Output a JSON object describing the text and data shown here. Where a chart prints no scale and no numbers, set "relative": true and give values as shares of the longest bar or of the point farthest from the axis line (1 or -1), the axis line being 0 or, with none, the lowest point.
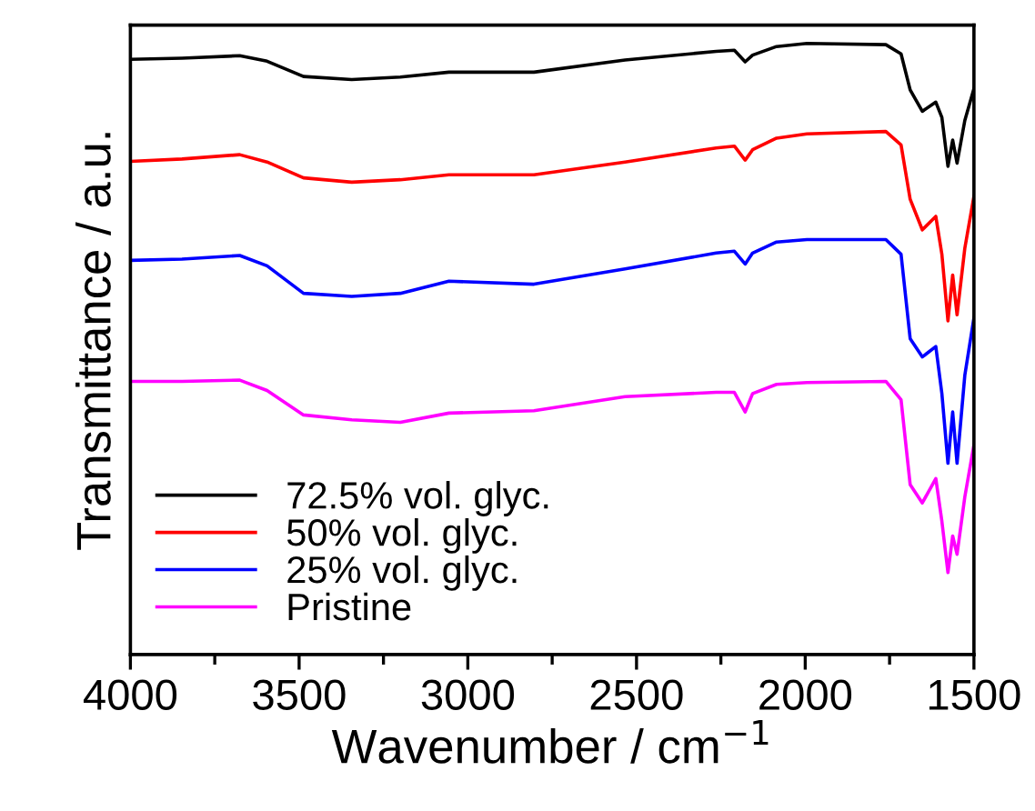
{
  "chart_data": {
    "type": "line",
    "relative": true,
    "xlabel": "Wavenumber / cm$^{−1}$",
    "ylabel": "Transmittance / a.u.",
    "x": [
      4000,
      3847,
      3676,
      3595,
      3487,
      3344,
      3200,
      3056,
      2804,
      2534,
      2264,
      2210,
      2178,
      2156,
      2085,
      1995,
      1761,
      1716,
      1689,
      1653,
      1613,
      1595,
      1577,
      1563,
      1550,
      1527,
      1500
    ],
    "xlim": [
      4000,
      1500
    ],
    "xticks": [
      4000,
      3500,
      3000,
      2500,
      2000,
      1500
    ],
    "legend": "bottom left",
    "grid": false,
    "line_style": "solid",
    "marker": "none",
    "series": [
      {
        "name": "72.5% vol. glyc.",
        "color": "#000000",
        "values": [
          0.974,
          0.976,
          0.98,
          0.971,
          0.946,
          0.941,
          0.945,
          0.953,
          0.953,
          0.973,
          0.987,
          0.989,
          0.97,
          0.981,
          0.995,
          1.0,
          0.998,
          0.983,
          0.924,
          0.889,
          0.904,
          0.879,
          0.799,
          0.842,
          0.804,
          0.874,
          0.926
        ]
      },
      {
        "name": "50% vol. glyc.",
        "color": "#ff0000",
        "values": [
          0.807,
          0.811,
          0.818,
          0.806,
          0.78,
          0.773,
          0.777,
          0.785,
          0.785,
          0.806,
          0.829,
          0.832,
          0.809,
          0.826,
          0.845,
          0.852,
          0.856,
          0.834,
          0.745,
          0.695,
          0.717,
          0.655,
          0.546,
          0.621,
          0.556,
          0.665,
          0.75
        ]
      },
      {
        "name": "25% vol. glyc.",
        "color": "#0000ff",
        "values": [
          0.645,
          0.647,
          0.653,
          0.636,
          0.591,
          0.586,
          0.591,
          0.611,
          0.606,
          0.631,
          0.657,
          0.66,
          0.639,
          0.657,
          0.675,
          0.679,
          0.679,
          0.655,
          0.517,
          0.487,
          0.504,
          0.427,
          0.313,
          0.397,
          0.313,
          0.457,
          0.551
        ]
      },
      {
        "name": "Pristine",
        "color": "#ff00ff",
        "values": [
          0.447,
          0.447,
          0.449,
          0.432,
          0.392,
          0.384,
          0.38,
          0.395,
          0.399,
          0.422,
          0.429,
          0.429,
          0.397,
          0.427,
          0.442,
          0.445,
          0.447,
          0.417,
          0.278,
          0.248,
          0.288,
          0.218,
          0.134,
          0.194,
          0.164,
          0.258,
          0.343
        ]
      }
    ]
  }
}
